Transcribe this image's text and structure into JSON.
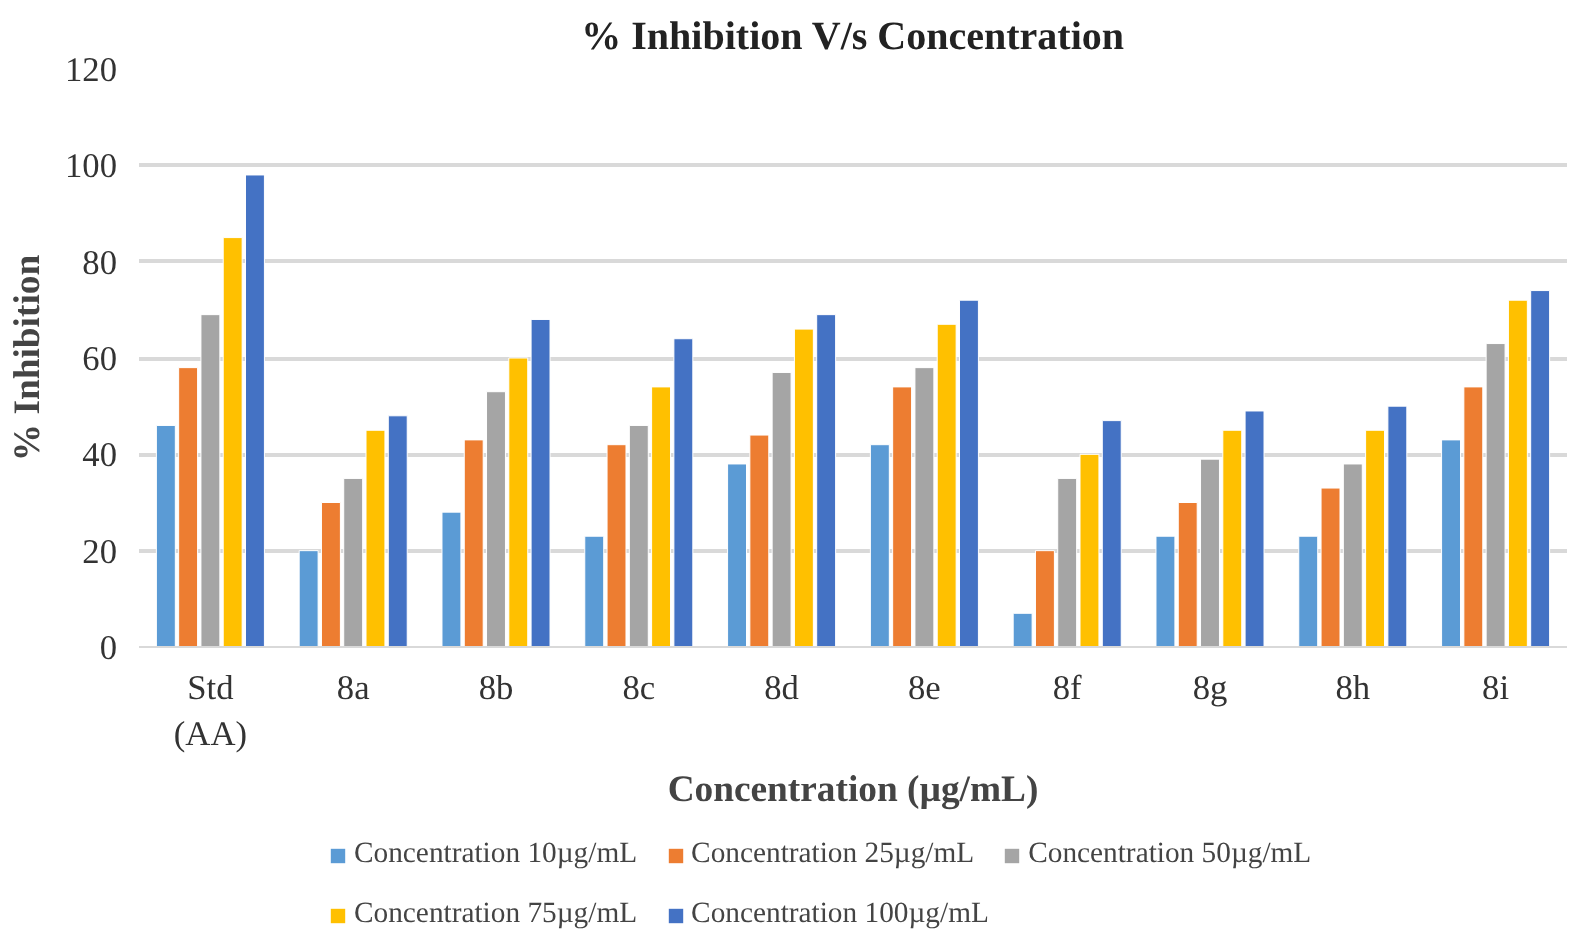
{
  "chart_data": {
    "type": "bar",
    "title": "% Inhibition V/s Concentration",
    "xlabel": "Concentration (µg/mL)",
    "ylabel": "% Inhibition",
    "categories": [
      "Std (AA)",
      "8a",
      "8b",
      "8c",
      "8d",
      "8e",
      "8f",
      "8g",
      "8h",
      "8i"
    ],
    "series": [
      {
        "name": "Concentration 10µg/mL",
        "color": "#5b9bd5",
        "values": [
          46,
          20,
          28,
          23,
          38,
          42,
          7,
          23,
          23,
          43
        ]
      },
      {
        "name": "Concentration 25µg/mL",
        "color": "#ed7d31",
        "values": [
          58,
          30,
          43,
          42,
          44,
          54,
          20,
          30,
          33,
          54
        ]
      },
      {
        "name": "Concentration 50µg/mL",
        "color": "#a5a5a5",
        "values": [
          69,
          35,
          53,
          46,
          57,
          58,
          35,
          39,
          38,
          63
        ]
      },
      {
        "name": "Concentration 75µg/mL",
        "color": "#ffc000",
        "values": [
          85,
          45,
          60,
          54,
          66,
          67,
          40,
          45,
          45,
          72
        ]
      },
      {
        "name": "Concentration 100µg/mL",
        "color": "#4472c4",
        "values": [
          98,
          48,
          68,
          64,
          69,
          72,
          47,
          49,
          50,
          74
        ]
      }
    ],
    "ylim": [
      0,
      120
    ],
    "yticks": [
      0,
      20,
      40,
      60,
      80,
      100,
      120
    ],
    "grid": "y",
    "legend": "bottom"
  }
}
